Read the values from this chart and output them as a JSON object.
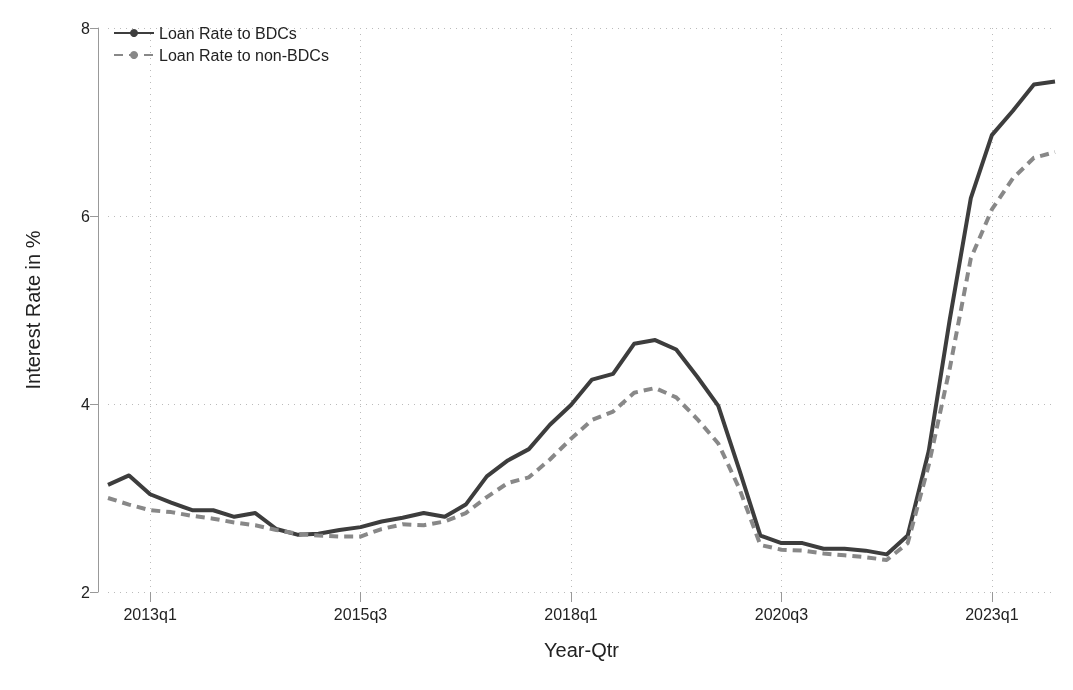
{
  "chart_data": {
    "type": "line",
    "xlabel": "Year-Qtr",
    "ylabel": "Interest Rate in %",
    "categories": [
      null,
      null,
      "2013q1",
      null,
      null,
      null,
      null,
      null,
      null,
      null,
      null,
      null,
      "2015q3",
      null,
      null,
      null,
      null,
      null,
      null,
      null,
      null,
      null,
      "2018q1",
      null,
      null,
      null,
      null,
      null,
      null,
      null,
      null,
      null,
      "2020q3",
      null,
      null,
      null,
      null,
      null,
      null,
      null,
      null,
      null,
      "2023q1",
      null,
      null,
      null
    ],
    "series": [
      {
        "name": "Loan Rate to BDCs",
        "color": "#3d3d3d",
        "line_style": "solid",
        "values": [
          3.14,
          3.24,
          3.04,
          2.95,
          2.87,
          2.87,
          2.8,
          2.84,
          2.67,
          2.61,
          2.62,
          2.66,
          2.69,
          2.75,
          2.79,
          2.84,
          2.8,
          2.93,
          3.23,
          3.4,
          3.52,
          3.78,
          3.99,
          4.26,
          4.32,
          4.64,
          4.68,
          4.58,
          4.29,
          3.98,
          3.3,
          2.6,
          2.52,
          2.52,
          2.46,
          2.46,
          2.44,
          2.4,
          2.6,
          3.5,
          4.9,
          6.19,
          6.86,
          7.12,
          7.4,
          7.43
        ]
      },
      {
        "name": "Loan Rate to non-BDCs",
        "color": "#888888",
        "line_style": "dashed",
        "values": [
          3.0,
          2.93,
          2.87,
          2.85,
          2.81,
          2.78,
          2.74,
          2.71,
          2.66,
          2.62,
          2.6,
          2.59,
          2.59,
          2.67,
          2.72,
          2.71,
          2.75,
          2.84,
          3.01,
          3.16,
          3.22,
          3.41,
          3.63,
          3.83,
          3.92,
          4.12,
          4.17,
          4.07,
          3.84,
          3.58,
          3.1,
          2.5,
          2.45,
          2.44,
          2.41,
          2.39,
          2.37,
          2.34,
          2.52,
          3.35,
          4.38,
          5.55,
          6.07,
          6.4,
          6.62,
          6.68
        ]
      }
    ],
    "ylim": [
      2,
      8
    ],
    "yticks": [
      2,
      4,
      6,
      8
    ],
    "grid": true,
    "legend": "top left",
    "marker": "none"
  }
}
